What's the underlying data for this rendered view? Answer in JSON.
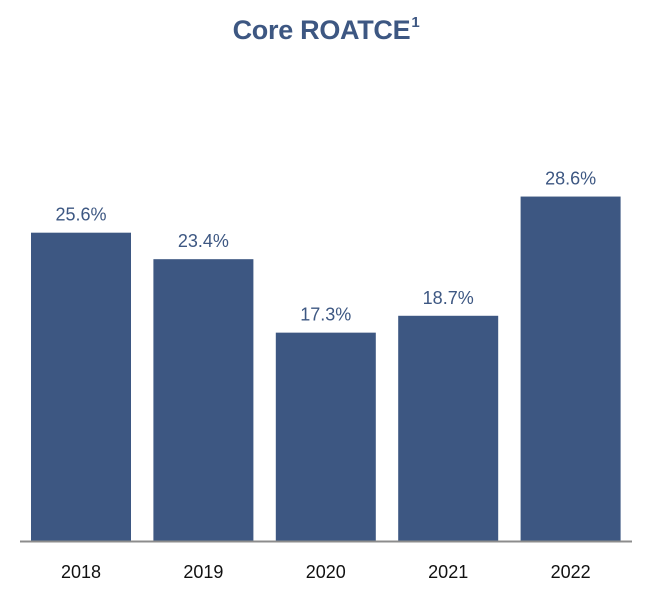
{
  "chart_data": {
    "type": "bar",
    "title": "Core ROATCE",
    "title_superscript": "1",
    "categories": [
      "2018",
      "2019",
      "2020",
      "2021",
      "2022"
    ],
    "values": [
      25.6,
      23.4,
      17.3,
      18.7,
      28.6
    ],
    "value_labels": [
      "25.6%",
      "23.4%",
      "17.3%",
      "18.7%",
      "28.6%"
    ],
    "xlabel": "",
    "ylabel": "",
    "ylim": [
      0,
      36.7
    ],
    "grid": false,
    "legend": "none"
  },
  "colors": {
    "bar": "#3d5782",
    "title": "#3d5782",
    "value_label": "#3d5782",
    "category_label": "#111111",
    "axis": "#8c8c8c"
  }
}
